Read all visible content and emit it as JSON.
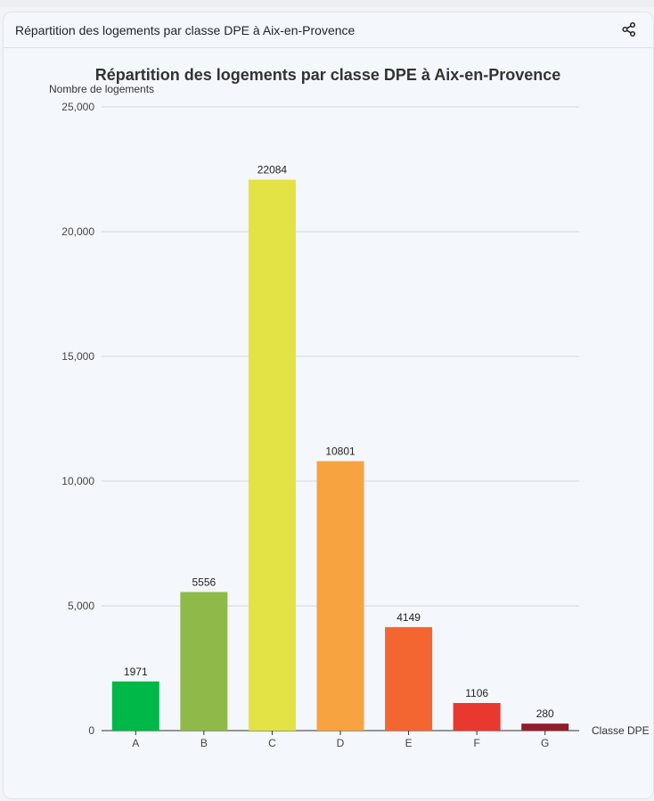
{
  "card": {
    "title": "Répartition des logements par classe DPE à Aix-en-Provence",
    "share_icon": "share-icon"
  },
  "chart_data": {
    "type": "bar",
    "title": "Répartition des logements par classe DPE à Aix-en-Provence",
    "xlabel": "Classe DPE",
    "ylabel": "Nombre de logements",
    "categories": [
      "A",
      "B",
      "C",
      "D",
      "E",
      "F",
      "G"
    ],
    "values": [
      1971,
      5556,
      22084,
      10801,
      4149,
      1106,
      280
    ],
    "colors": [
      "#00b847",
      "#8fba4a",
      "#e3e346",
      "#f6a340",
      "#f36632",
      "#e8382f",
      "#8e1f2b"
    ],
    "ylim": [
      0,
      25000
    ],
    "yticks": [
      0,
      5000,
      10000,
      15000,
      20000,
      25000
    ],
    "ytick_labels": [
      "0",
      "5,000",
      "10,000",
      "15,000",
      "20,000",
      "25,000"
    ],
    "grid": true,
    "data_labels": true
  }
}
